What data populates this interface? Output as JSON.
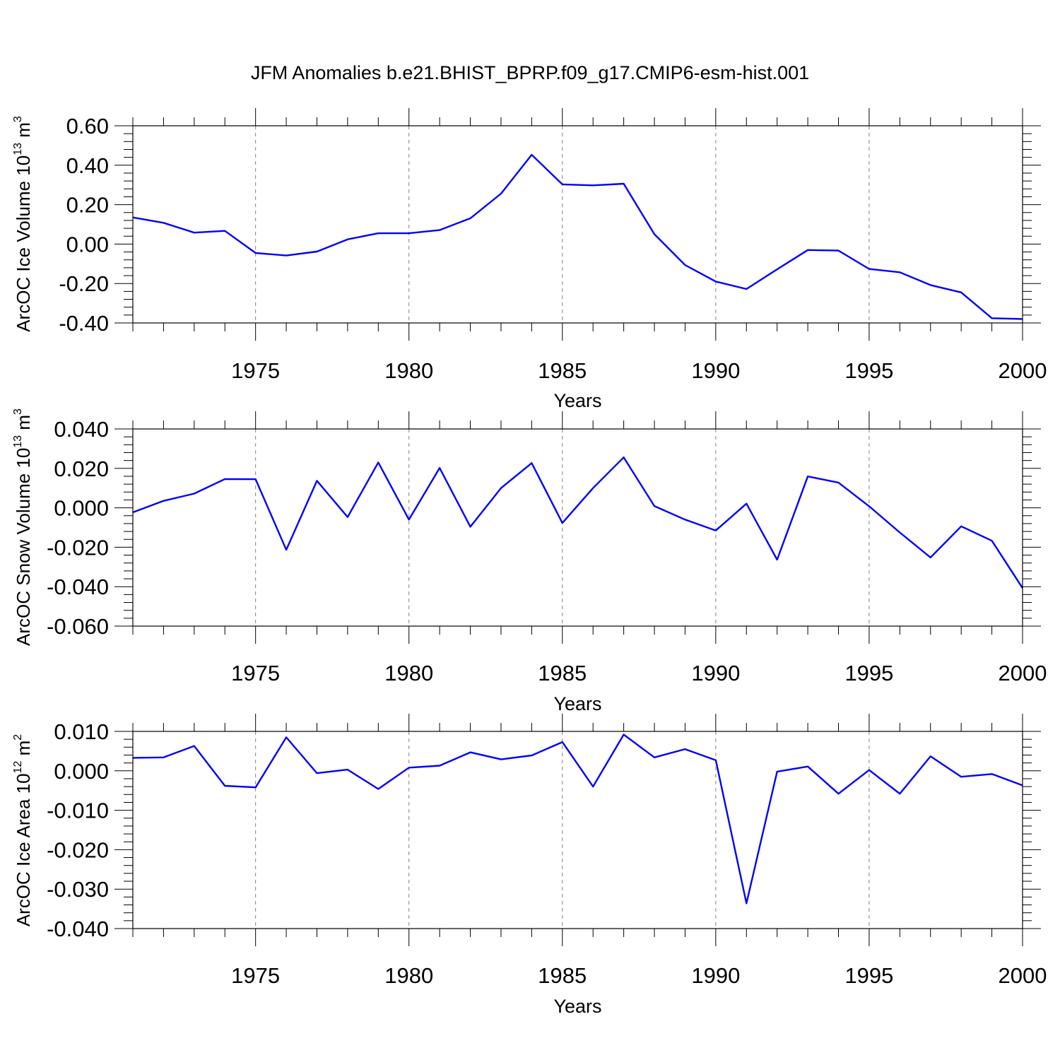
{
  "chart_data": {
    "title": "JFM Anomalies b.e21.BHIST_BPRP.f09_g17.CMIP6-esm-hist.001",
    "x": [
      1971,
      1972,
      1973,
      1974,
      1975,
      1976,
      1977,
      1978,
      1979,
      1980,
      1981,
      1982,
      1983,
      1984,
      1985,
      1986,
      1987,
      1988,
      1989,
      1990,
      1991,
      1992,
      1993,
      1994,
      1995,
      1996,
      1997,
      1998,
      1999,
      2000
    ],
    "xlim": [
      1971,
      2000
    ],
    "xticks": [
      1975,
      1980,
      1985,
      1990,
      1995,
      2000
    ],
    "xtick_labels": [
      "1975",
      "1980",
      "1985",
      "1990",
      "1995",
      "2000"
    ],
    "panels": [
      {
        "type": "line",
        "ylabel": "ArcOC Ice Volume 10",
        "ylabel_exp": "13",
        "ylabel_unit": "m",
        "ylabel_unit_exp": "3",
        "xlabel": "Years",
        "ylim": [
          -0.4,
          0.6
        ],
        "yticks": [
          -0.4,
          -0.2,
          0.0,
          0.2,
          0.4,
          0.6
        ],
        "ytick_labels": [
          "-0.40",
          "-0.20",
          "0.00",
          "0.20",
          "0.40",
          "0.60"
        ],
        "grid": "vertical-dashed",
        "color": "#0000ff",
        "values": [
          0.135,
          0.108,
          0.058,
          0.067,
          -0.045,
          -0.058,
          -0.038,
          0.024,
          0.055,
          0.055,
          0.071,
          0.131,
          0.256,
          0.453,
          0.303,
          0.298,
          0.306,
          0.05,
          -0.106,
          -0.19,
          -0.228,
          -0.128,
          -0.03,
          -0.033,
          -0.126,
          -0.143,
          -0.208,
          -0.245,
          -0.376,
          -0.38
        ]
      },
      {
        "type": "line",
        "ylabel": "ArcOC Snow Volume 10",
        "ylabel_exp": "13",
        "ylabel_unit": "m",
        "ylabel_unit_exp": "3",
        "xlabel": "Years",
        "ylim": [
          -0.06,
          0.04
        ],
        "yticks": [
          -0.06,
          -0.04,
          -0.02,
          0.0,
          0.02,
          0.04
        ],
        "ytick_labels": [
          "-0.060",
          "-0.040",
          "-0.020",
          "0.000",
          "0.020",
          "0.040"
        ],
        "grid": "vertical-dashed",
        "color": "#0000ff",
        "values": [
          -0.0023,
          0.0035,
          0.0072,
          0.0146,
          0.0145,
          -0.0213,
          0.0137,
          -0.0047,
          0.023,
          -0.006,
          0.0202,
          -0.0096,
          0.01,
          0.0227,
          -0.0077,
          0.01,
          0.0256,
          0.0009,
          -0.006,
          -0.0115,
          0.0021,
          -0.0263,
          0.0159,
          0.0128,
          0.0008,
          -0.0125,
          -0.0252,
          -0.0094,
          -0.0167,
          -0.0407
        ]
      },
      {
        "type": "line",
        "ylabel": "ArcOC Ice Area 10",
        "ylabel_exp": "12",
        "ylabel_unit": "m",
        "ylabel_unit_exp": "2",
        "xlabel": "Years",
        "ylim": [
          -0.04,
          0.01
        ],
        "yticks": [
          -0.04,
          -0.03,
          -0.02,
          -0.01,
          0.0,
          0.01
        ],
        "ytick_labels": [
          "-0.040",
          "-0.030",
          "-0.020",
          "-0.010",
          "0.000",
          "0.010"
        ],
        "grid": "vertical-dashed",
        "color": "#0000ff",
        "values": [
          0.0033,
          0.0034,
          0.0063,
          -0.0038,
          -0.0042,
          0.0085,
          -0.0006,
          0.0003,
          -0.0046,
          0.0008,
          0.0013,
          0.0047,
          0.0029,
          0.0039,
          0.0073,
          -0.004,
          0.0092,
          0.0034,
          0.0055,
          0.0027,
          -0.0336,
          -0.0002,
          0.0011,
          -0.0058,
          0.0002,
          -0.0058,
          0.0037,
          -0.0015,
          -0.0008,
          -0.0037
        ]
      }
    ]
  }
}
